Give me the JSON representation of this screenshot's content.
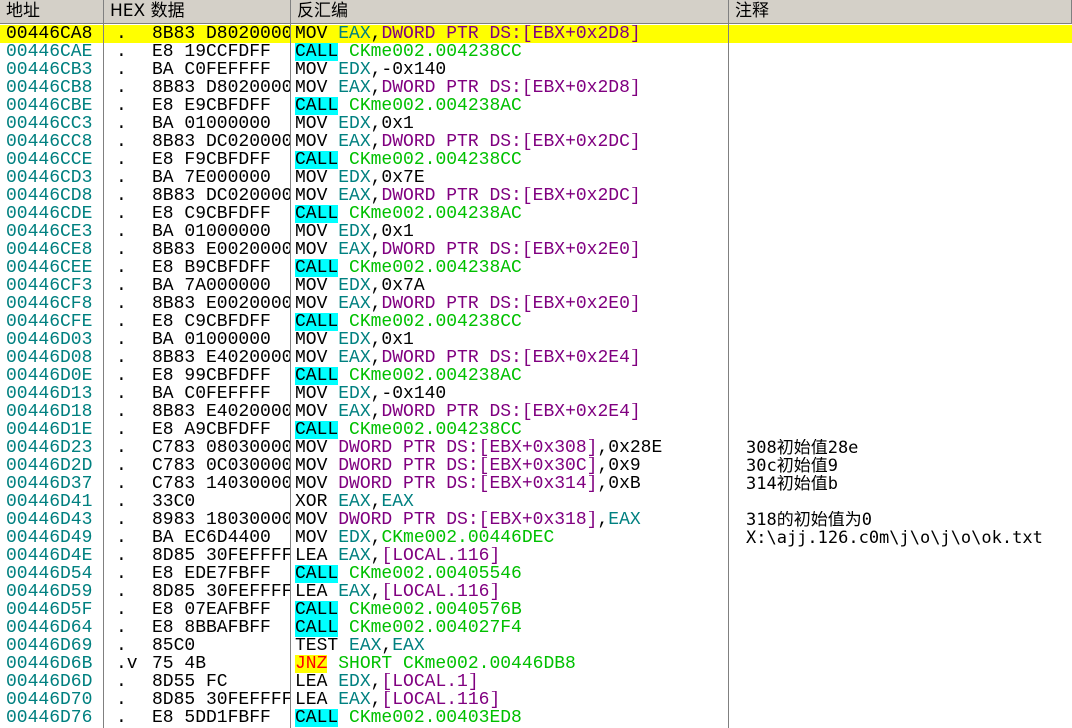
{
  "header": {
    "address": "地址",
    "hex": "HEX 数据",
    "disassembly": "反汇编",
    "comment": "注释"
  },
  "rows": [
    {
      "address": "00446CA8",
      "marker": ".",
      "hex": "8B83 D8020000",
      "disassembly": "MOV EAX,DWORD PTR DS:[EBX+0x2D8]",
      "selected": true
    },
    {
      "address": "00446CAE",
      "marker": ".",
      "hex": "E8 19CCFDFF",
      "disassembly": "CALL CKme002.004238CC"
    },
    {
      "address": "00446CB3",
      "marker": ".",
      "hex": "BA C0FEFFFF",
      "disassembly": "MOV EDX,-0x140"
    },
    {
      "address": "00446CB8",
      "marker": ".",
      "hex": "8B83 D8020000",
      "disassembly": "MOV EAX,DWORD PTR DS:[EBX+0x2D8]"
    },
    {
      "address": "00446CBE",
      "marker": ".",
      "hex": "E8 E9CBFDFF",
      "disassembly": "CALL CKme002.004238AC"
    },
    {
      "address": "00446CC3",
      "marker": ".",
      "hex": "BA 01000000",
      "disassembly": "MOV EDX,0x1"
    },
    {
      "address": "00446CC8",
      "marker": ".",
      "hex": "8B83 DC020000",
      "disassembly": "MOV EAX,DWORD PTR DS:[EBX+0x2DC]"
    },
    {
      "address": "00446CCE",
      "marker": ".",
      "hex": "E8 F9CBFDFF",
      "disassembly": "CALL CKme002.004238CC"
    },
    {
      "address": "00446CD3",
      "marker": ".",
      "hex": "BA 7E000000",
      "disassembly": "MOV EDX,0x7E"
    },
    {
      "address": "00446CD8",
      "marker": ".",
      "hex": "8B83 DC020000",
      "disassembly": "MOV EAX,DWORD PTR DS:[EBX+0x2DC]"
    },
    {
      "address": "00446CDE",
      "marker": ".",
      "hex": "E8 C9CBFDFF",
      "disassembly": "CALL CKme002.004238AC"
    },
    {
      "address": "00446CE3",
      "marker": ".",
      "hex": "BA 01000000",
      "disassembly": "MOV EDX,0x1"
    },
    {
      "address": "00446CE8",
      "marker": ".",
      "hex": "8B83 E0020000",
      "disassembly": "MOV EAX,DWORD PTR DS:[EBX+0x2E0]"
    },
    {
      "address": "00446CEE",
      "marker": ".",
      "hex": "E8 B9CBFDFF",
      "disassembly": "CALL CKme002.004238AC"
    },
    {
      "address": "00446CF3",
      "marker": ".",
      "hex": "BA 7A000000",
      "disassembly": "MOV EDX,0x7A"
    },
    {
      "address": "00446CF8",
      "marker": ".",
      "hex": "8B83 E0020000",
      "disassembly": "MOV EAX,DWORD PTR DS:[EBX+0x2E0]"
    },
    {
      "address": "00446CFE",
      "marker": ".",
      "hex": "E8 C9CBFDFF",
      "disassembly": "CALL CKme002.004238CC"
    },
    {
      "address": "00446D03",
      "marker": ".",
      "hex": "BA 01000000",
      "disassembly": "MOV EDX,0x1"
    },
    {
      "address": "00446D08",
      "marker": ".",
      "hex": "8B83 E4020000",
      "disassembly": "MOV EAX,DWORD PTR DS:[EBX+0x2E4]"
    },
    {
      "address": "00446D0E",
      "marker": ".",
      "hex": "E8 99CBFDFF",
      "disassembly": "CALL CKme002.004238AC"
    },
    {
      "address": "00446D13",
      "marker": ".",
      "hex": "BA C0FEFFFF",
      "disassembly": "MOV EDX,-0x140"
    },
    {
      "address": "00446D18",
      "marker": ".",
      "hex": "8B83 E4020000",
      "disassembly": "MOV EAX,DWORD PTR DS:[EBX+0x2E4]"
    },
    {
      "address": "00446D1E",
      "marker": ".",
      "hex": "E8 A9CBFDFF",
      "disassembly": "CALL CKme002.004238CC"
    },
    {
      "address": "00446D23",
      "marker": ".",
      "hex": "C783 08030000",
      "disassembly": "MOV DWORD PTR DS:[EBX+0x308],0x28E",
      "comment": "308初始值28e"
    },
    {
      "address": "00446D2D",
      "marker": ".",
      "hex": "C783 0C030000",
      "disassembly": "MOV DWORD PTR DS:[EBX+0x30C],0x9",
      "comment": "30c初始值9"
    },
    {
      "address": "00446D37",
      "marker": ".",
      "hex": "C783 14030000",
      "disassembly": "MOV DWORD PTR DS:[EBX+0x314],0xB",
      "comment": "314初始值b"
    },
    {
      "address": "00446D41",
      "marker": ".",
      "hex": "33C0",
      "disassembly": "XOR EAX,EAX"
    },
    {
      "address": "00446D43",
      "marker": ".",
      "hex": "8983 18030000",
      "disassembly": "MOV DWORD PTR DS:[EBX+0x318],EAX",
      "comment": "318的初始值为0"
    },
    {
      "address": "00446D49",
      "marker": ".",
      "hex": "BA EC6D4400",
      "disassembly": "MOV EDX,CKme002.00446DEC",
      "comment": "X:\\ajj.126.c0m\\j\\o\\j\\o\\ok.txt"
    },
    {
      "address": "00446D4E",
      "marker": ".",
      "hex": "8D85 30FEFFFF",
      "disassembly": "LEA EAX,[LOCAL.116]"
    },
    {
      "address": "00446D54",
      "marker": ".",
      "hex": "E8 EDE7FBFF",
      "disassembly": "CALL CKme002.00405546"
    },
    {
      "address": "00446D59",
      "marker": ".",
      "hex": "8D85 30FEFFFF",
      "disassembly": "LEA EAX,[LOCAL.116]"
    },
    {
      "address": "00446D5F",
      "marker": ".",
      "hex": "E8 07EAFBFF",
      "disassembly": "CALL CKme002.0040576B"
    },
    {
      "address": "00446D64",
      "marker": ".",
      "hex": "E8 8BBAFBFF",
      "disassembly": "CALL CKme002.004027F4"
    },
    {
      "address": "00446D69",
      "marker": ".",
      "hex": "85C0",
      "disassembly": "TEST EAX,EAX"
    },
    {
      "address": "00446D6B",
      "marker": ".v",
      "hex": "75 4B",
      "disassembly": "JNZ SHORT CKme002.00446DB8"
    },
    {
      "address": "00446D6D",
      "marker": ".",
      "hex": "8D55 FC",
      "disassembly": "LEA EDX,[LOCAL.1]"
    },
    {
      "address": "00446D70",
      "marker": ".",
      "hex": "8D85 30FEFFFF",
      "disassembly": "LEA EAX,[LOCAL.116]"
    },
    {
      "address": "00446D76",
      "marker": ".",
      "hex": "E8 5DD1FBFF",
      "disassembly": "CALL CKme002.00403ED8"
    }
  ]
}
